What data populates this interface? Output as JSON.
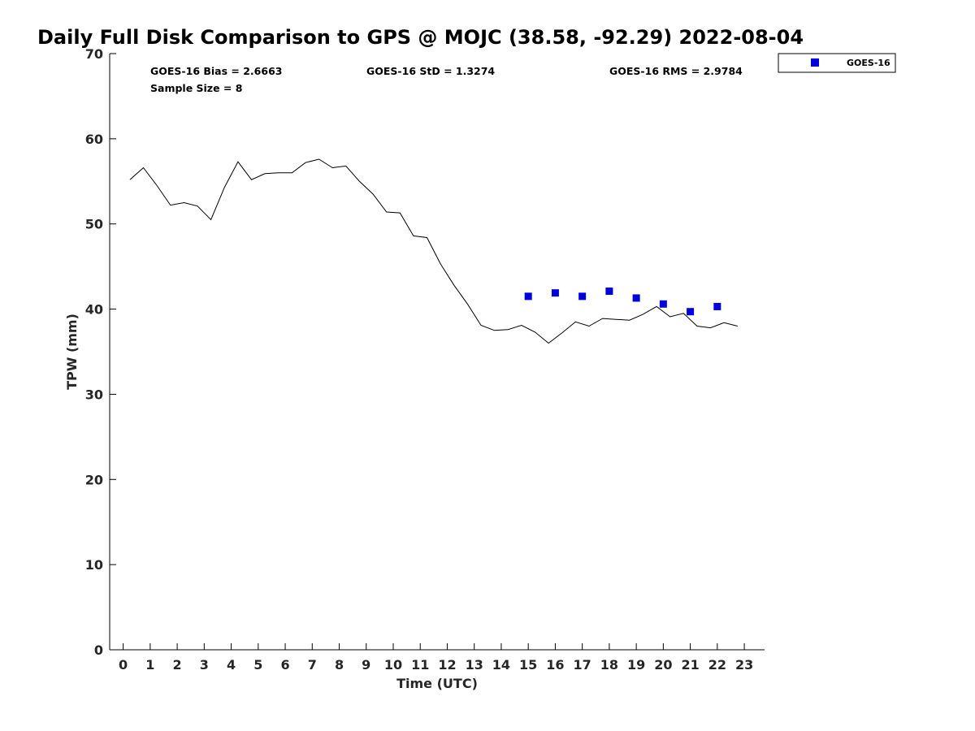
{
  "chart_data": {
    "type": "line",
    "title": "Daily Full Disk Comparison to GPS @ MOJC (38.58, -92.29) 2022-08-04",
    "xlabel": "Time (UTC)",
    "ylabel": "TPW (mm)",
    "xlim": [
      -0.5,
      23.75
    ],
    "ylim": [
      0,
      70
    ],
    "x_ticks": [
      "0",
      "1",
      "2",
      "3",
      "4",
      "5",
      "6",
      "7",
      "8",
      "9",
      "10",
      "11",
      "12",
      "13",
      "14",
      "15",
      "16",
      "17",
      "18",
      "19",
      "20",
      "21",
      "22",
      "23"
    ],
    "y_ticks": [
      "0",
      "10",
      "20",
      "30",
      "40",
      "50",
      "60",
      "70"
    ],
    "grid": false,
    "legend_position": "top-right",
    "stats": {
      "bias": "GOES-16 Bias = 2.6663",
      "std": "GOES-16 StD = 1.3274",
      "rms": "GOES-16 RMS = 2.9784",
      "sample": "Sample Size = 8"
    },
    "series": [
      {
        "kind": "line",
        "color": "#000000",
        "x": [
          0.25,
          0.75,
          1.25,
          1.75,
          2.25,
          2.75,
          3.25,
          3.75,
          4.25,
          4.75,
          5.25,
          5.75,
          6.25,
          6.75,
          7.25,
          7.75,
          8.25,
          8.75,
          9.25,
          9.75,
          10.25,
          10.75,
          11.25,
          11.75,
          12.25,
          12.75,
          13.25,
          13.75,
          14.25,
          14.75,
          15.25,
          15.75,
          16.25,
          16.75,
          17.25,
          17.75,
          18.25,
          18.75,
          19.25,
          19.75,
          20.25,
          20.75,
          21.25,
          21.75,
          22.25,
          22.75
        ],
        "values": [
          55.2,
          56.6,
          54.5,
          52.2,
          52.5,
          52.1,
          50.5,
          54.3,
          57.3,
          55.2,
          55.9,
          56.0,
          56.0,
          57.2,
          57.6,
          56.6,
          56.8,
          55.0,
          53.5,
          51.4,
          51.3,
          48.6,
          48.4,
          45.3,
          42.8,
          40.6,
          38.1,
          37.5,
          37.6,
          38.1,
          37.3,
          36.0,
          37.2,
          38.5,
          38.0,
          38.9,
          38.8,
          38.7,
          39.4,
          40.3,
          39.1,
          39.5,
          38.0,
          37.8,
          38.4,
          38.0
        ]
      },
      {
        "name": "GOES-16",
        "kind": "scatter",
        "marker": "square",
        "color": "#0000dd",
        "x": [
          15,
          16,
          17,
          18,
          19,
          20,
          21,
          22
        ],
        "values": [
          41.5,
          41.9,
          41.5,
          42.1,
          41.3,
          40.6,
          39.7,
          40.3
        ]
      }
    ]
  }
}
